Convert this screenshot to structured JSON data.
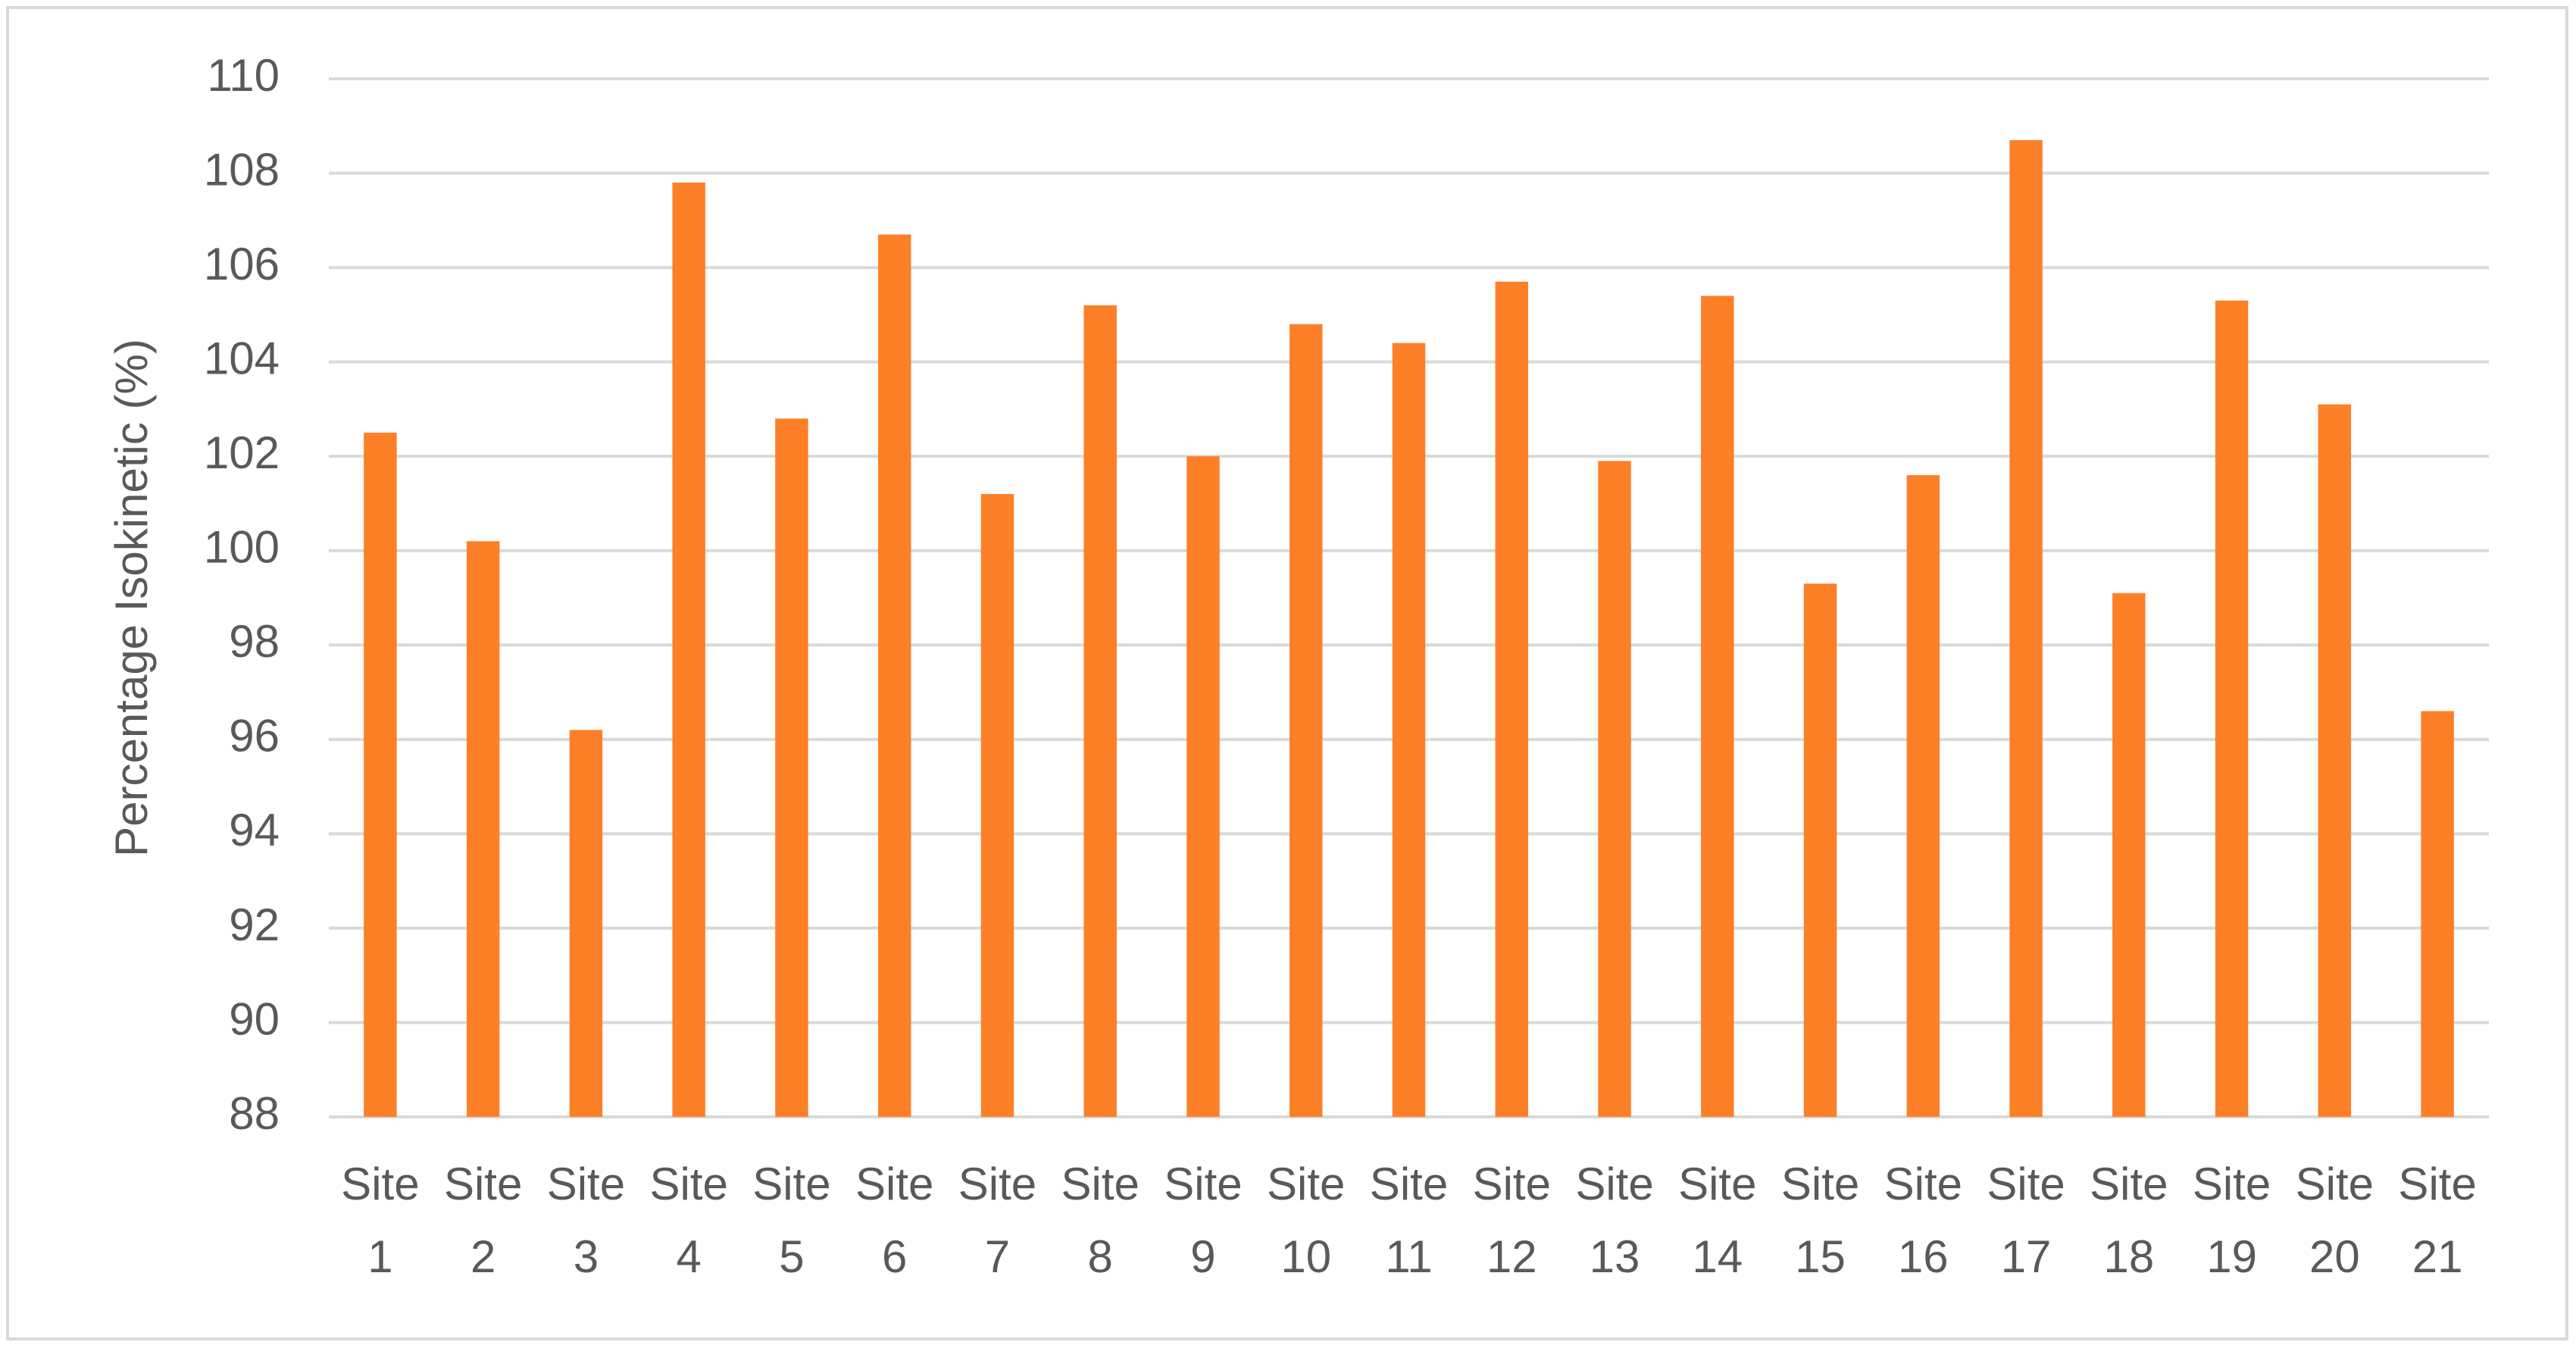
{
  "chart_data": {
    "type": "bar",
    "y_label": "Percentage Isokinetic (%)",
    "categories": [
      "Site 1",
      "Site 2",
      "Site 3",
      "Site 4",
      "Site 5",
      "Site 6",
      "Site 7",
      "Site 8",
      "Site 9",
      "Site 10",
      "Site 11",
      "Site 12",
      "Site 13",
      "Site 14",
      "Site 15",
      "Site 16",
      "Site 17",
      "Site 18",
      "Site 19",
      "Site 20",
      "Site 21"
    ],
    "values": [
      102.5,
      100.2,
      96.2,
      107.8,
      102.8,
      106.7,
      101.2,
      105.2,
      102.0,
      104.8,
      104.4,
      105.7,
      101.9,
      105.4,
      99.3,
      101.6,
      108.7,
      99.1,
      105.3,
      103.1,
      96.6
    ],
    "color": "#fd7f28",
    "ylim": [
      88,
      110
    ],
    "yticks": [
      88,
      90,
      92,
      94,
      96,
      98,
      100,
      102,
      104,
      106,
      108,
      110
    ],
    "grid": true
  }
}
